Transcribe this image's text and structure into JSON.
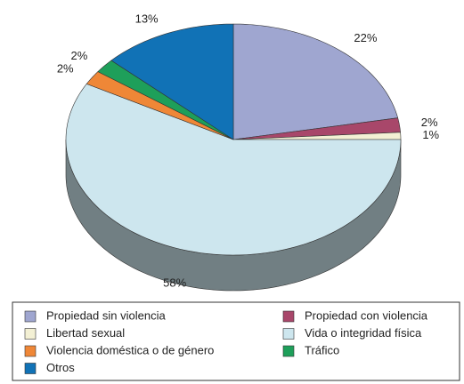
{
  "chart_data": {
    "type": "pie",
    "categories": [
      "Propiedad sin violencia",
      "Propiedad con violencia",
      "Libertad sexual",
      "Vida o integridad física",
      "Violencia doméstica o de género",
      "Tráfico",
      "Otros"
    ],
    "values": [
      22,
      2,
      1,
      58,
      2,
      2,
      13
    ],
    "value_labels": [
      "22%",
      "2%",
      "1%",
      "58%",
      "2%",
      "2%",
      "13%"
    ],
    "colors": [
      "#9fa6d0",
      "#a8476a",
      "#f3f0d4",
      "#cde6ee",
      "#ef8737",
      "#1e9f5a",
      "#1172b6"
    ]
  }
}
